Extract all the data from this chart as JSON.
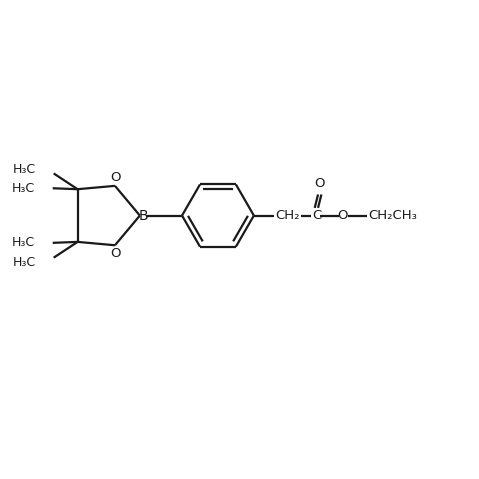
{
  "bg_color": "#ffffff",
  "line_color": "#1a1a1a",
  "line_width": 1.6,
  "font_size": 9.5,
  "figsize": [
    4.79,
    4.79
  ],
  "dpi": 100,
  "xlim": [
    0,
    10
  ],
  "ylim": [
    0,
    10
  ]
}
